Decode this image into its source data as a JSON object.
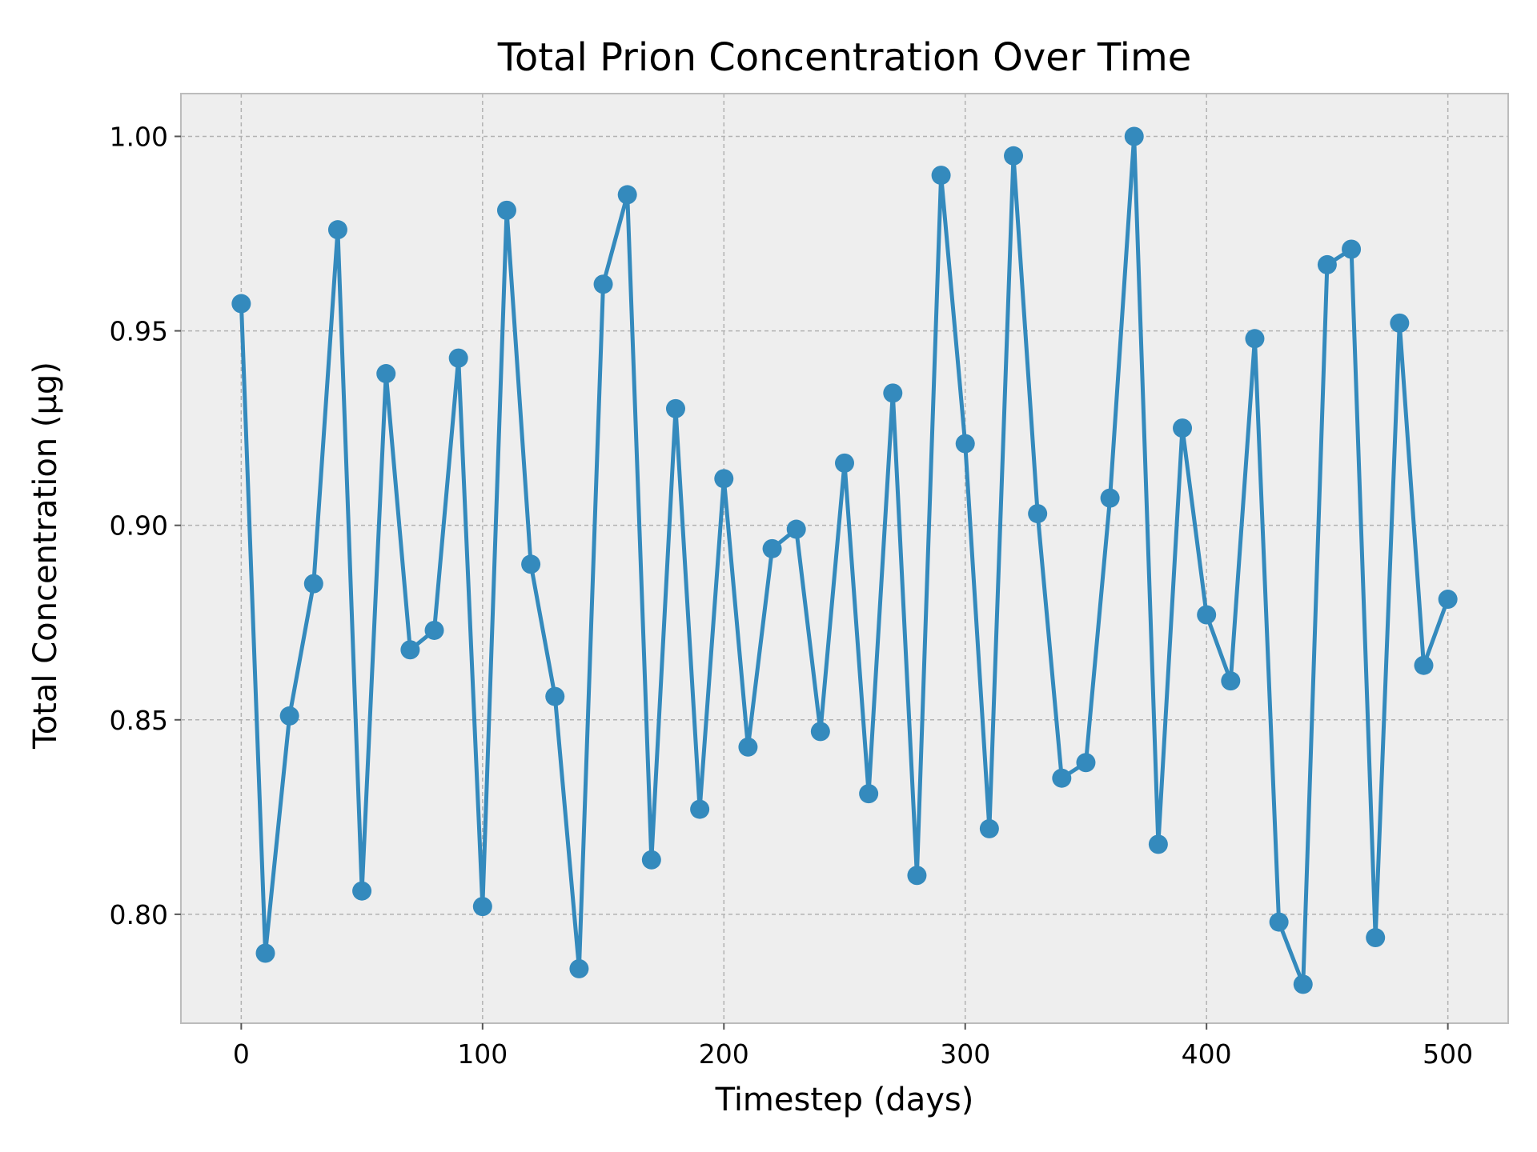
{
  "chart_data": {
    "type": "line",
    "title": "Total Prion Concentration Over Time",
    "xlabel": "Timestep (days)",
    "ylabel": "Total Concentration (μg)",
    "xlim": [
      -25,
      525
    ],
    "ylim": [
      0.772,
      1.011
    ],
    "xticks": [
      0,
      100,
      200,
      300,
      400,
      500
    ],
    "yticks": [
      0.8,
      0.85,
      0.9,
      0.95,
      1.0
    ],
    "xtick_labels": [
      "0",
      "100",
      "200",
      "300",
      "400",
      "500"
    ],
    "ytick_labels": [
      "0.80",
      "0.85",
      "0.90",
      "0.95",
      "1.00"
    ],
    "grid": true,
    "legend": "none",
    "colors": {
      "line": "#348ABD",
      "plot_background": "#EEEEEE",
      "grid": "#B2B2B2",
      "frame": "#BCBCBC"
    },
    "series": [
      {
        "x": [
          0,
          10,
          20,
          30,
          40,
          50,
          60,
          70,
          80,
          90,
          100,
          110,
          120,
          130,
          140,
          150,
          160,
          170,
          180,
          190,
          200,
          210,
          220,
          230,
          240,
          250,
          260,
          270,
          280,
          290,
          300,
          310,
          320,
          330,
          340,
          350,
          360,
          370,
          380,
          390,
          400,
          410,
          420,
          430,
          440,
          450,
          460,
          470,
          480,
          490,
          500
        ],
        "values": [
          0.957,
          0.79,
          0.851,
          0.885,
          0.976,
          0.806,
          0.939,
          0.868,
          0.873,
          0.943,
          0.802,
          0.981,
          0.89,
          0.856,
          0.786,
          0.962,
          0.985,
          0.814,
          0.93,
          0.827,
          0.912,
          0.843,
          0.894,
          0.899,
          0.847,
          0.916,
          0.831,
          0.934,
          0.81,
          0.99,
          0.921,
          0.822,
          0.995,
          0.903,
          0.835,
          0.839,
          0.907,
          1.0,
          0.818,
          0.925,
          0.877,
          0.86,
          0.948,
          0.798,
          0.782,
          0.967,
          0.971,
          0.794,
          0.952,
          0.864,
          0.881
        ]
      }
    ]
  }
}
